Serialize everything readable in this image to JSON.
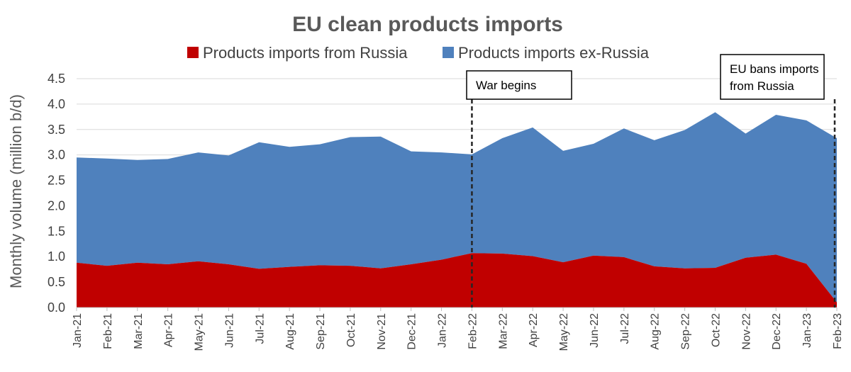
{
  "chart_data": {
    "type": "area",
    "stacked": true,
    "title": "EU clean products imports",
    "ylabel": "Monthly volume (million b/d)",
    "xlabel": "",
    "ylim": [
      0,
      4.5
    ],
    "y_ticks": [
      "0.0",
      "0.5",
      "1.0",
      "1.5",
      "2.0",
      "2.5",
      "3.0",
      "3.5",
      "4.0",
      "4.5"
    ],
    "grid": true,
    "legend_position": "top",
    "categories": [
      "Jan-21",
      "Feb-21",
      "Mar-21",
      "Apr-21",
      "May-21",
      "Jun-21",
      "Jul-21",
      "Aug-21",
      "Sep-21",
      "Oct-21",
      "Nov-21",
      "Dec-21",
      "Jan-22",
      "Feb-22",
      "Mar-22",
      "Apr-22",
      "May-22",
      "Jun-22",
      "Jul-22",
      "Aug-22",
      "Sep-22",
      "Oct-22",
      "Nov-22",
      "Dec-22",
      "Jan-23",
      "Feb-23"
    ],
    "series": [
      {
        "name": "Products imports from Russia",
        "color": "#C00000",
        "values": [
          0.88,
          0.82,
          0.88,
          0.85,
          0.91,
          0.85,
          0.76,
          0.8,
          0.83,
          0.82,
          0.77,
          0.85,
          0.94,
          1.07,
          1.06,
          1.01,
          0.89,
          1.02,
          0.99,
          0.81,
          0.77,
          0.78,
          0.98,
          1.04,
          0.86,
          0.1
        ]
      },
      {
        "name": "Products imports ex-Russia",
        "color": "#4F81BD",
        "values": [
          2.07,
          2.11,
          2.02,
          2.07,
          2.14,
          2.14,
          2.49,
          2.36,
          2.38,
          2.53,
          2.59,
          2.22,
          2.11,
          1.94,
          2.27,
          2.53,
          2.19,
          2.2,
          2.53,
          2.48,
          2.72,
          3.06,
          2.44,
          2.75,
          2.82,
          3.23
        ]
      }
    ],
    "annotations": [
      {
        "category": "Feb-22",
        "lines": [
          "War begins"
        ]
      },
      {
        "category": "Feb-23",
        "lines": [
          "EU bans imports",
          "from Russia"
        ]
      }
    ]
  }
}
